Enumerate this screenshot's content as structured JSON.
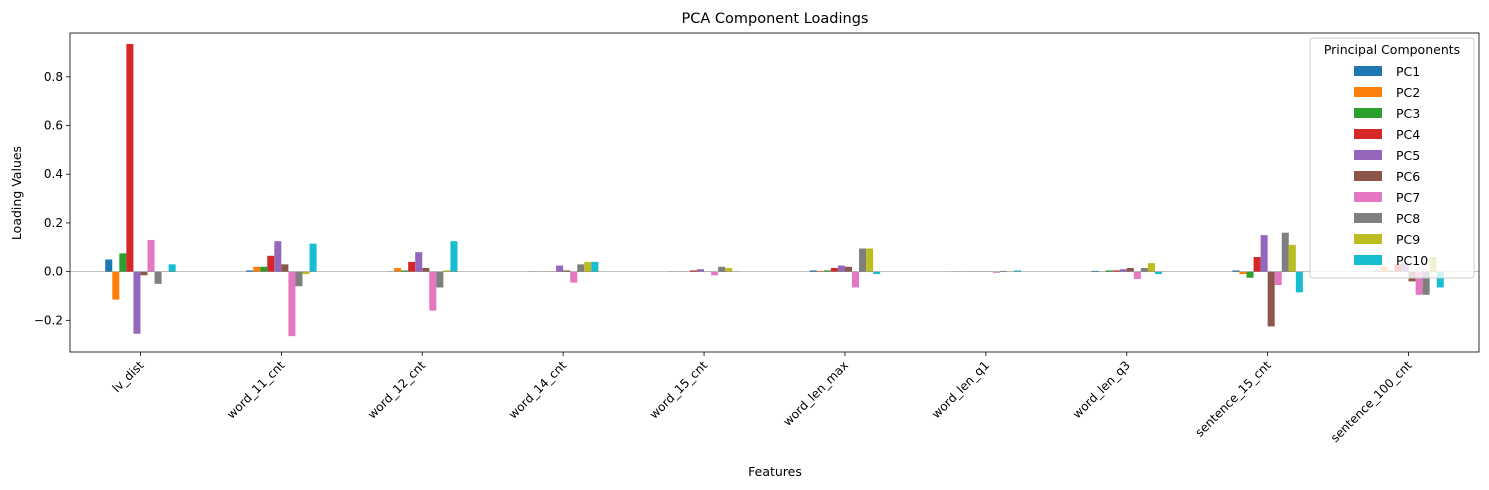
{
  "chart_data": {
    "type": "bar",
    "title": "PCA Component Loadings",
    "xlabel": "Features",
    "ylabel": "Loading Values",
    "ylim": [
      -0.33,
      0.98
    ],
    "yticks": [
      -0.2,
      0.0,
      0.2,
      0.4,
      0.6,
      0.8
    ],
    "ytick_labels": [
      "−0.2",
      "0.0",
      "0.2",
      "0.4",
      "0.6",
      "0.8"
    ],
    "categories": [
      "lv_dist",
      "word_11_cnt",
      "word_12_cnt",
      "word_14_cnt",
      "word_15_cnt",
      "word_len_max",
      "word_len_q1",
      "word_len_q3",
      "sentence_15_cnt",
      "sentence_100_cnt"
    ],
    "legend": {
      "title": "Principal Components",
      "placement": "top-right"
    },
    "grid": false,
    "series": [
      {
        "name": "PC1",
        "color": "#1f77b4",
        "values": [
          0.05,
          0.005,
          0.0,
          0.0,
          0.0,
          0.005,
          0.0,
          0.003,
          0.005,
          0.005
        ]
      },
      {
        "name": "PC2",
        "color": "#ff7f0e",
        "values": [
          -0.115,
          0.02,
          0.015,
          0.0,
          0.0,
          0.003,
          0.0,
          0.0,
          -0.01,
          0.02
        ]
      },
      {
        "name": "PC3",
        "color": "#2ca02c",
        "values": [
          0.075,
          0.02,
          0.005,
          0.0,
          0.0,
          0.005,
          0.0,
          0.005,
          -0.025,
          0.005
        ]
      },
      {
        "name": "PC4",
        "color": "#d62728",
        "values": [
          0.935,
          0.065,
          0.04,
          0.0,
          0.005,
          0.015,
          0.0,
          0.005,
          0.06,
          0.03
        ]
      },
      {
        "name": "PC5",
        "color": "#9467bd",
        "values": [
          -0.255,
          0.125,
          0.08,
          0.025,
          0.01,
          0.025,
          0.0,
          0.01,
          0.15,
          0.035
        ]
      },
      {
        "name": "PC6",
        "color": "#8c564b",
        "values": [
          -0.015,
          0.03,
          0.015,
          0.005,
          0.0,
          0.02,
          0.0,
          0.015,
          -0.225,
          -0.04
        ]
      },
      {
        "name": "PC7",
        "color": "#e377c2",
        "values": [
          0.13,
          -0.265,
          -0.16,
          -0.045,
          -0.015,
          -0.065,
          -0.005,
          -0.03,
          -0.055,
          -0.095
        ]
      },
      {
        "name": "PC8",
        "color": "#7f7f7f",
        "values": [
          -0.05,
          -0.06,
          -0.065,
          0.03,
          0.02,
          0.095,
          0.003,
          0.015,
          0.16,
          -0.095
        ]
      },
      {
        "name": "PC9",
        "color": "#bcbd22",
        "values": [
          0.0,
          -0.01,
          0.005,
          0.04,
          0.015,
          0.095,
          0.0,
          0.035,
          0.11,
          0.06
        ]
      },
      {
        "name": "PC10",
        "color": "#17becf",
        "values": [
          0.03,
          0.115,
          0.125,
          0.04,
          0.0,
          -0.01,
          0.005,
          -0.01,
          -0.085,
          -0.065
        ]
      }
    ]
  }
}
